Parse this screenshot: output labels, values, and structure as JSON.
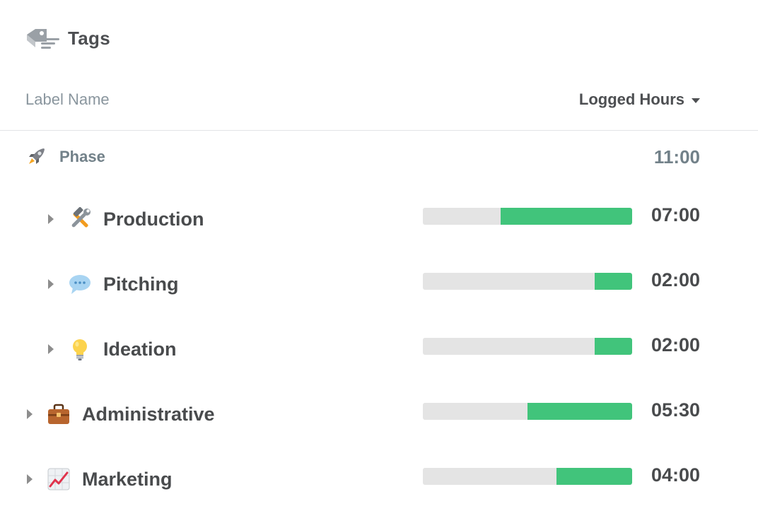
{
  "header": {
    "title": "Tags",
    "icon": "tag-icon"
  },
  "columns": {
    "label_name": "Label Name",
    "logged_hours": "Logged Hours"
  },
  "colors": {
    "accent": "#41c47b",
    "bar_track": "#e4e4e4"
  },
  "phase": {
    "emoji": "rocket-icon",
    "label": "Phase",
    "total": "11:00"
  },
  "rows": [
    {
      "label": "Production",
      "emoji": "hammer-and-wrench-icon",
      "hours": "07:00",
      "fill_fraction": 0.63
    },
    {
      "label": "Pitching",
      "emoji": "speech-bubble-icon",
      "hours": "02:00",
      "fill_fraction": 0.18
    },
    {
      "label": "Ideation",
      "emoji": "light-bulb-icon",
      "hours": "02:00",
      "fill_fraction": 0.18
    },
    {
      "label": "Administrative",
      "emoji": "briefcase-icon",
      "hours": "05:30",
      "fill_fraction": 0.5
    },
    {
      "label": "Marketing",
      "emoji": "chart-increasing-icon",
      "hours": "04:00",
      "fill_fraction": 0.36
    }
  ]
}
